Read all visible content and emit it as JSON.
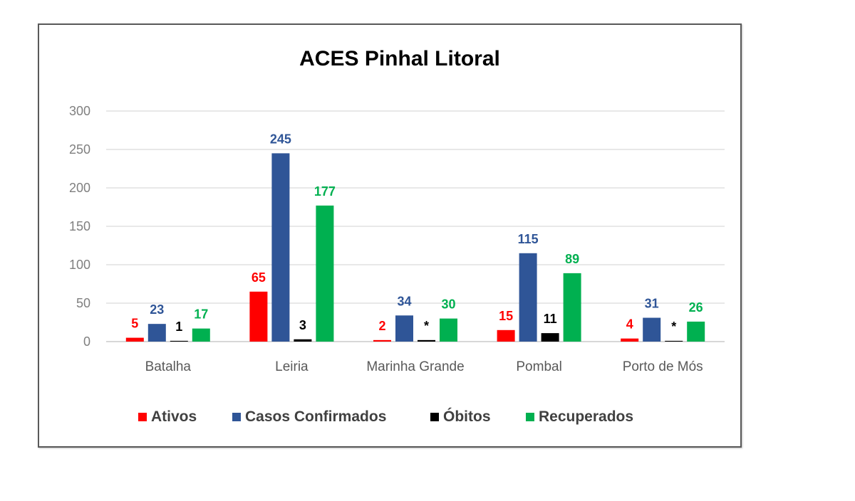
{
  "chart_data": {
    "type": "bar",
    "title": "ACES Pinhal Litoral",
    "xlabel": "",
    "ylabel": "",
    "ylim": [
      0,
      300
    ],
    "yticks": [
      0,
      50,
      100,
      150,
      200,
      250,
      300
    ],
    "grid": true,
    "legend_position": "bottom",
    "categories": [
      "Batalha",
      "Leiria",
      "Marinha Grande",
      "Pombal",
      "Porto de Mós"
    ],
    "series": [
      {
        "name": "Ativos",
        "color": "#ff0000",
        "values": [
          5,
          65,
          2,
          15,
          4
        ],
        "labels": [
          "5",
          "65",
          "2",
          "15",
          "4"
        ]
      },
      {
        "name": "Casos Confirmados",
        "color": "#2f5597",
        "values": [
          23,
          245,
          34,
          115,
          31
        ],
        "labels": [
          "23",
          "245",
          "34",
          "115",
          "31"
        ]
      },
      {
        "name": "Óbitos",
        "color": "#000000",
        "values": [
          1,
          3,
          2,
          11,
          1
        ],
        "labels": [
          "1",
          "3",
          "*",
          "11",
          "*"
        ]
      },
      {
        "name": "Recuperados",
        "color": "#00b050",
        "values": [
          17,
          177,
          30,
          89,
          26
        ],
        "labels": [
          "17",
          "177",
          "30",
          "89",
          "26"
        ]
      }
    ]
  }
}
